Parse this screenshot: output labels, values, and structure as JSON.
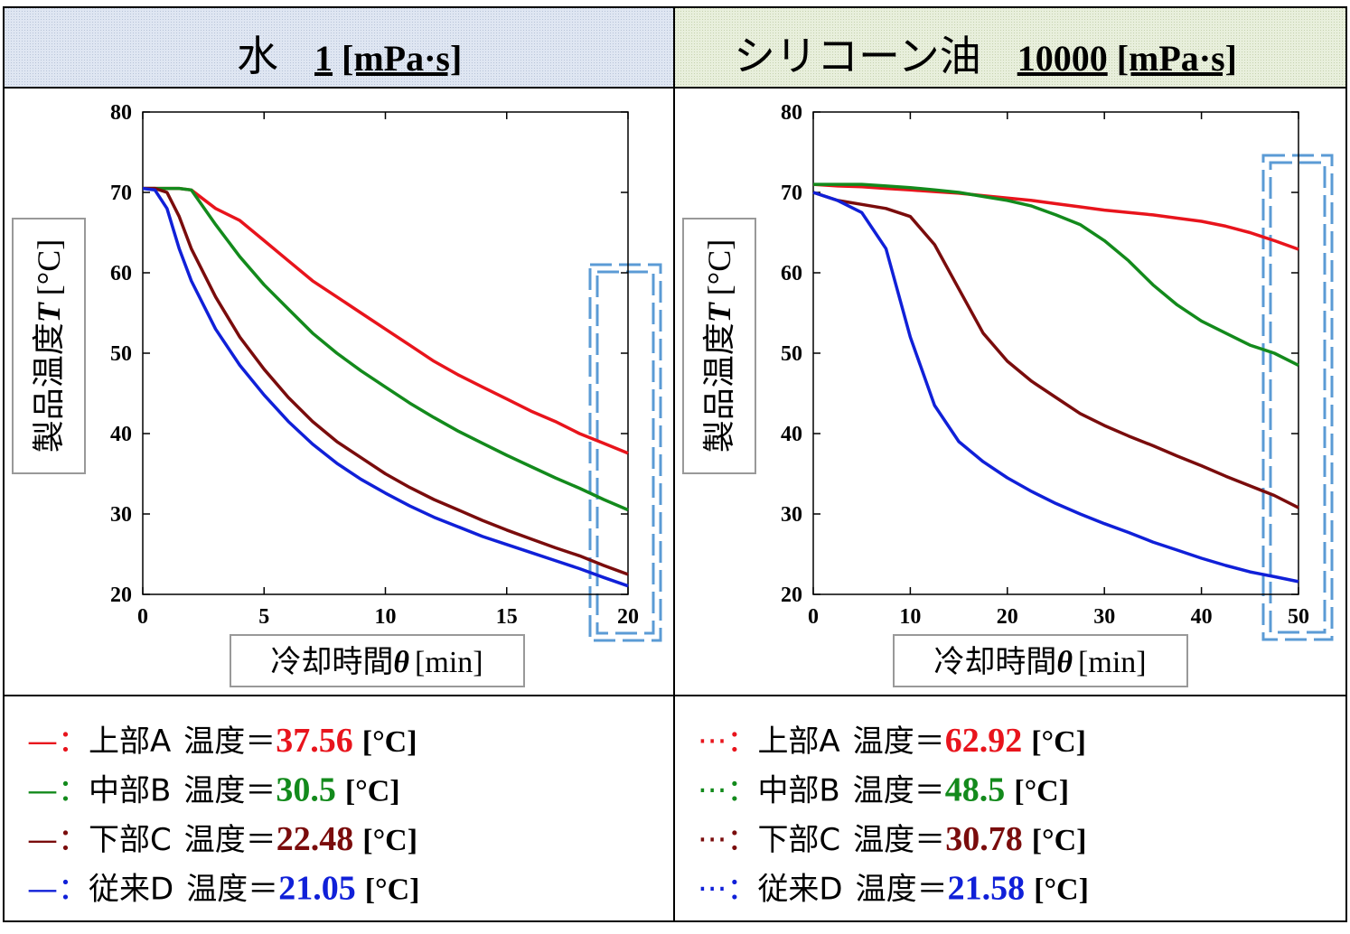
{
  "chart_data": [
    {
      "type": "line",
      "title": "水",
      "viscosity": 1,
      "viscosity_unit": "[mPa·s]",
      "ylabel": {
        "text": "製品温度",
        "symbol": "T",
        "unit": "[°C]"
      },
      "xlabel": {
        "text": "冷却時間",
        "symbol": "θ",
        "unit": "[min]"
      },
      "xlim": [
        0,
        20
      ],
      "xticks": [
        0,
        5,
        10,
        15,
        20
      ],
      "ylim": [
        20,
        80
      ],
      "yticks": [
        20,
        30,
        40,
        50,
        60,
        70,
        80
      ],
      "x": [
        0,
        0.5,
        1,
        1.5,
        2,
        3,
        4,
        5,
        6,
        7,
        8,
        9,
        10,
        11,
        12,
        13,
        14,
        15,
        16,
        17,
        18,
        19,
        20
      ],
      "legend_marker": "—：",
      "legend_text": "温度＝",
      "legend_unit": "[°C]",
      "series": [
        {
          "name": "上部A",
          "color": "#e8141c",
          "final": 37.56,
          "values": [
            70.5,
            70.5,
            70.5,
            70.5,
            70.3,
            68,
            66.5,
            64,
            61.5,
            59,
            57,
            55,
            53,
            51,
            49,
            47.3,
            45.8,
            44.3,
            42.8,
            41.5,
            40,
            38.8,
            37.56
          ]
        },
        {
          "name": "中部B",
          "color": "#138a1c",
          "final": 30.5,
          "values": [
            70.5,
            70.5,
            70.5,
            70.5,
            70.3,
            66,
            62,
            58.5,
            55.5,
            52.5,
            50,
            47.8,
            45.8,
            43.8,
            42,
            40.3,
            38.8,
            37.3,
            35.9,
            34.5,
            33.2,
            31.8,
            30.5
          ]
        },
        {
          "name": "下部C",
          "color": "#7a0c0c",
          "final": 22.48,
          "values": [
            70.5,
            70.5,
            70,
            67,
            63,
            57,
            52,
            48,
            44.5,
            41.5,
            39,
            37,
            35,
            33.3,
            31.8,
            30.5,
            29.2,
            28,
            26.9,
            25.8,
            24.8,
            23.6,
            22.48
          ]
        },
        {
          "name": "従来D",
          "color": "#1020d8",
          "final": 21.05,
          "values": [
            70.5,
            70.3,
            68,
            63,
            59,
            53,
            48.5,
            44.8,
            41.5,
            38.7,
            36.3,
            34.3,
            32.6,
            31,
            29.6,
            28.4,
            27.2,
            26.2,
            25.2,
            24.2,
            23.2,
            22.1,
            21.05
          ]
        }
      ]
    },
    {
      "type": "line",
      "title": "シリコーン油",
      "viscosity": 10000,
      "viscosity_unit": "[mPa·s]",
      "ylabel": {
        "text": "製品温度",
        "symbol": "T",
        "unit": "[°C]"
      },
      "xlabel": {
        "text": "冷却時間",
        "symbol": "θ",
        "unit": "[min]"
      },
      "xlim": [
        0,
        50
      ],
      "xticks": [
        0,
        10,
        20,
        30,
        40,
        50
      ],
      "ylim": [
        20,
        80
      ],
      "yticks": [
        20,
        30,
        40,
        50,
        60,
        70,
        80
      ],
      "x": [
        0,
        2.5,
        5,
        7.5,
        10,
        12.5,
        15,
        17.5,
        20,
        22.5,
        25,
        27.5,
        30,
        32.5,
        35,
        37.5,
        40,
        42.5,
        45,
        47.5,
        50
      ],
      "legend_marker": "···：",
      "legend_text": "温度＝",
      "legend_unit": "[°C]",
      "series": [
        {
          "name": "上部A",
          "color": "#e8141c",
          "final": 62.92,
          "values": [
            71,
            70.8,
            70.7,
            70.5,
            70.3,
            70.1,
            69.9,
            69.6,
            69.3,
            69,
            68.6,
            68.2,
            67.8,
            67.5,
            67.2,
            66.8,
            66.4,
            65.8,
            65,
            64,
            62.92
          ]
        },
        {
          "name": "中部B",
          "color": "#138a1c",
          "final": 48.5,
          "values": [
            71,
            71,
            71,
            70.8,
            70.6,
            70.3,
            70,
            69.5,
            69,
            68.3,
            67.2,
            66,
            64,
            61.5,
            58.5,
            56,
            54,
            52.5,
            51,
            50,
            48.5
          ]
        },
        {
          "name": "下部C",
          "color": "#7a0c0c",
          "final": 30.78,
          "values": [
            70,
            69,
            68.5,
            68,
            67,
            63.5,
            58,
            52.5,
            49,
            46.5,
            44.5,
            42.5,
            41,
            39.7,
            38.5,
            37.2,
            36,
            34.7,
            33.5,
            32.3,
            30.78
          ]
        },
        {
          "name": "従来D",
          "color": "#1020d8",
          "final": 21.58,
          "values": [
            70,
            69,
            67.5,
            63,
            52,
            43.5,
            39,
            36.5,
            34.5,
            32.8,
            31.3,
            30,
            28.8,
            27.7,
            26.5,
            25.5,
            24.5,
            23.6,
            22.8,
            22.2,
            21.58
          ]
        }
      ]
    }
  ]
}
